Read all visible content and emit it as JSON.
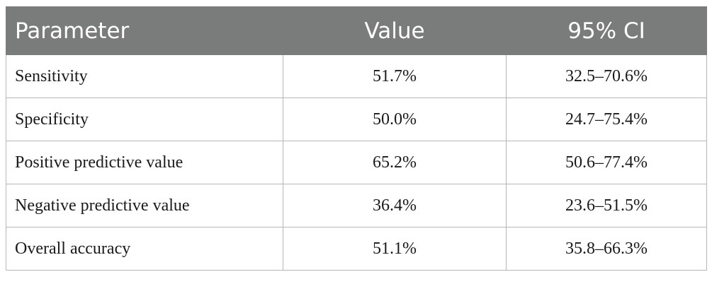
{
  "table": {
    "headers": [
      "Parameter",
      "Value",
      "95% CI"
    ],
    "rows": [
      {
        "parameter": "Sensitivity",
        "value": "51.7%",
        "ci": "32.5–70.6%"
      },
      {
        "parameter": "Specificity",
        "value": "50.0%",
        "ci": "24.7–75.4%"
      },
      {
        "parameter": "Positive predictive value",
        "value": "65.2%",
        "ci": "50.6–77.4%"
      },
      {
        "parameter": "Negative predictive value",
        "value": "36.4%",
        "ci": "23.6–51.5%"
      },
      {
        "parameter": "Overall accuracy",
        "value": "51.1%",
        "ci": "35.8–66.3%"
      }
    ]
  },
  "colors": {
    "header_background": "#7a7c7b",
    "header_text": "#ffffff",
    "grid_line": "#b7b7b7",
    "body_text": "#1a1a1a"
  }
}
